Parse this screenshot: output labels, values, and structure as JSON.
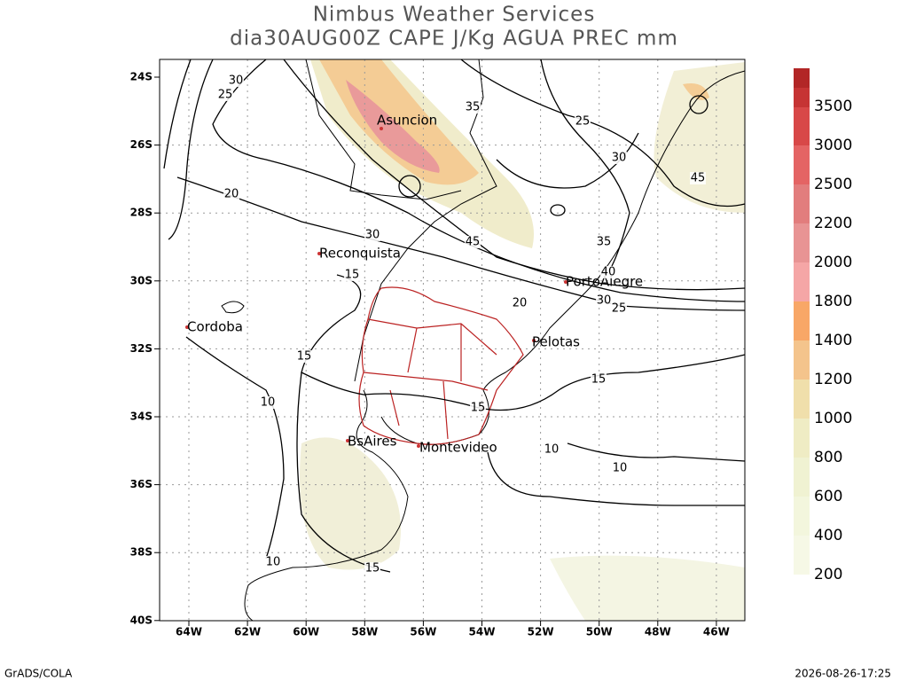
{
  "header": {
    "title": "Nimbus Weather Services",
    "subtitle": "dia30AUG00Z CAPE J/Kg AGUA PREC mm"
  },
  "map": {
    "lat_ticks": [
      "24S",
      "26S",
      "28S",
      "30S",
      "32S",
      "34S",
      "36S",
      "38S",
      "40S"
    ],
    "lon_ticks": [
      "64W",
      "62W",
      "60W",
      "58W",
      "56W",
      "54W",
      "52W",
      "50W",
      "48W",
      "46W"
    ],
    "cities": [
      "Asuncion",
      "Reconquista",
      "PortoAlegre",
      "Cordoba",
      "Pelotas",
      "BsAires",
      "Montevideo"
    ],
    "contour_labels": [
      "30",
      "25",
      "35",
      "25",
      "30",
      "45",
      "20",
      "30",
      "45",
      "35",
      "40",
      "15",
      "20",
      "30",
      "25",
      "15",
      "15",
      "10",
      "15",
      "10",
      "10",
      "10",
      "15"
    ]
  },
  "colorbar": {
    "labels": [
      "200",
      "400",
      "600",
      "800",
      "1000",
      "1200",
      "1400",
      "1800",
      "2000",
      "2200",
      "2500",
      "3000",
      "3500"
    ],
    "colors": [
      "#f6f8e6",
      "#f3f6dd",
      "#f0f2d2",
      "#efecc4",
      "#f0dfab",
      "#f4c48c",
      "#f8a767",
      "#f5a6a6",
      "#e89494",
      "#e27d7d",
      "#e46464",
      "#d84848",
      "#c63434",
      "#b22626"
    ]
  },
  "footer": {
    "left": "GrADS/COLA",
    "right": "2026-08-26-17:25"
  }
}
